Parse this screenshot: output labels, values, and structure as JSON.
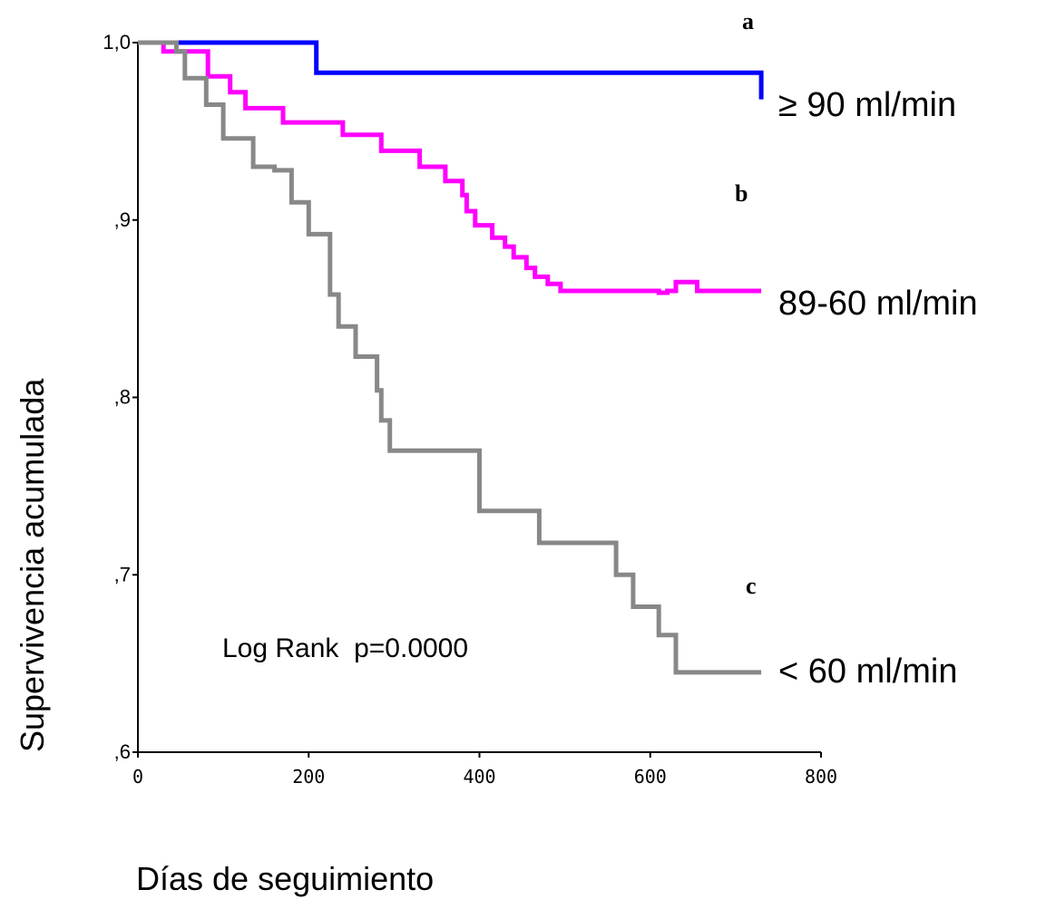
{
  "chart_data": {
    "type": "line",
    "step": true,
    "xlabel": "Días de seguimiento",
    "ylabel": "Supervivencia acumulada",
    "xlim": [
      0,
      800
    ],
    "ylim": [
      0.6,
      1.0
    ],
    "x_ticks": [
      0,
      200,
      400,
      600,
      800
    ],
    "x_tick_labels": [
      "0",
      "200",
      "400",
      "600",
      "800"
    ],
    "y_ticks": [
      0.6,
      0.7,
      0.8,
      0.9,
      1.0
    ],
    "y_tick_labels": [
      ",6",
      ",7",
      ",8",
      ",9",
      "1,0"
    ],
    "grid": false,
    "annotation": "Log Rank  p=0.0000",
    "series": [
      {
        "name": "≥ 90 ml/min",
        "letter": "a",
        "color": "#0000ff",
        "x": [
          0,
          209,
          209,
          730,
          730
        ],
        "y": [
          1.0,
          1.0,
          0.983,
          0.983,
          0.968
        ]
      },
      {
        "name": "89-60 ml/min",
        "letter": "b",
        "color": "#ff00ff",
        "x": [
          0,
          30,
          30,
          82,
          82,
          108,
          108,
          126,
          126,
          170,
          170,
          240,
          240,
          285,
          285,
          330,
          330,
          360,
          360,
          380,
          380,
          385,
          385,
          395,
          395,
          415,
          415,
          430,
          430,
          440,
          440,
          455,
          455,
          465,
          465,
          480,
          480,
          495,
          495,
          610,
          610,
          620,
          620,
          630,
          630,
          655,
          655,
          700,
          700,
          730
        ],
        "y": [
          1.0,
          1.0,
          0.995,
          0.995,
          0.981,
          0.981,
          0.972,
          0.972,
          0.963,
          0.963,
          0.955,
          0.955,
          0.948,
          0.948,
          0.939,
          0.939,
          0.93,
          0.93,
          0.922,
          0.922,
          0.914,
          0.914,
          0.905,
          0.905,
          0.897,
          0.897,
          0.89,
          0.89,
          0.885,
          0.885,
          0.879,
          0.879,
          0.873,
          0.873,
          0.868,
          0.868,
          0.864,
          0.864,
          0.86,
          0.86,
          0.859,
          0.859,
          0.86,
          0.86,
          0.865,
          0.865,
          0.86,
          0.86,
          0.86,
          0.86
        ]
      },
      {
        "name": "< 60 ml/min",
        "letter": "c",
        "color": "#888888",
        "x": [
          0,
          45,
          45,
          55,
          55,
          80,
          80,
          100,
          100,
          135,
          135,
          160,
          160,
          180,
          180,
          200,
          200,
          225,
          225,
          235,
          235,
          255,
          255,
          280,
          280,
          285,
          285,
          295,
          295,
          330,
          330,
          400,
          400,
          470,
          470,
          560,
          560,
          580,
          580,
          610,
          610,
          630,
          630,
          660,
          660,
          730
        ],
        "y": [
          1.0,
          1.0,
          0.995,
          0.995,
          0.98,
          0.98,
          0.965,
          0.965,
          0.946,
          0.946,
          0.93,
          0.93,
          0.928,
          0.928,
          0.91,
          0.91,
          0.892,
          0.892,
          0.858,
          0.858,
          0.84,
          0.84,
          0.823,
          0.823,
          0.804,
          0.804,
          0.787,
          0.787,
          0.77,
          0.77,
          0.77,
          0.77,
          0.736,
          0.736,
          0.718,
          0.718,
          0.7,
          0.7,
          0.682,
          0.682,
          0.666,
          0.666,
          0.645,
          0.645,
          0.645,
          0.645
        ]
      }
    ]
  }
}
